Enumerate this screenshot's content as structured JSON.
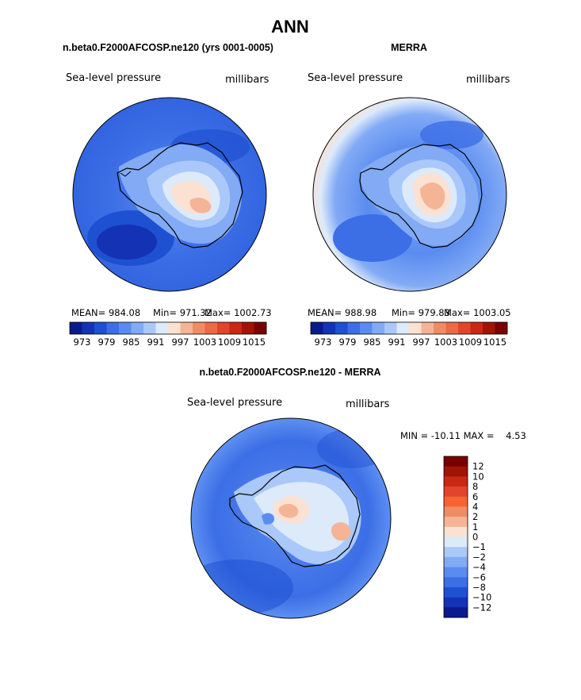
{
  "chart_data": [
    {
      "type": "heatmap",
      "panel": "model",
      "title": "n.beta0.F2000AFCOSP.ne120 (yrs 0001-0005)",
      "variable": "Sea-level pressure",
      "units": "millibars",
      "stats": {
        "mean": "MEAN= 984.08",
        "min": "Min= 971.32",
        "max": "Max= 1002.73"
      },
      "levels": [
        "973",
        "979",
        "985",
        "991",
        "997",
        "1003",
        "1009",
        "1015"
      ],
      "colors": [
        "#0a1a8c",
        "#1432b4",
        "#1e50d2",
        "#3c6ee6",
        "#5a8cf0",
        "#82aaf5",
        "#aac8fa",
        "#dceafa",
        "#fae1d2",
        "#f5b496",
        "#f08c64",
        "#ec6a46",
        "#e0462a",
        "#c82814",
        "#a01406",
        "#780000"
      ]
    },
    {
      "type": "heatmap",
      "panel": "obs",
      "title": "MERRA",
      "variable": "Sea-level pressure",
      "units": "millibars",
      "stats": {
        "mean": "MEAN= 988.98",
        "min": "Min= 979.83",
        "max": "Max= 1003.05"
      },
      "levels": [
        "973",
        "979",
        "985",
        "991",
        "997",
        "1003",
        "1009",
        "1015"
      ],
      "colors": [
        "#0a1a8c",
        "#1432b4",
        "#1e50d2",
        "#3c6ee6",
        "#5a8cf0",
        "#82aaf5",
        "#aac8fa",
        "#dceafa",
        "#fae1d2",
        "#f5b496",
        "#f08c64",
        "#ec6a46",
        "#e0462a",
        "#c82814",
        "#a01406",
        "#780000"
      ]
    },
    {
      "type": "heatmap",
      "panel": "diff",
      "title": "n.beta0.F2000AFCOSP.ne120 - MERRA",
      "variable": "Sea-level pressure",
      "units": "millibars",
      "stats": {
        "minmax": "MIN = -10.11 MAX =    4.53"
      },
      "levels": [
        "12",
        "10",
        "8",
        "6",
        "4",
        "2",
        "1",
        "0",
        "−1",
        "−2",
        "−4",
        "−6",
        "−8",
        "−10",
        "−12"
      ],
      "colors": [
        "#780000",
        "#a01406",
        "#c82814",
        "#e0462a",
        "#f46432",
        "#f08c64",
        "#f5b496",
        "#fae1d2",
        "#dceafa",
        "#aac8fa",
        "#82aaf5",
        "#5a8cf0",
        "#3c6ee6",
        "#1e50d2",
        "#1432b4",
        "#0a1a8c"
      ]
    }
  ],
  "figure": {
    "title": "ANN"
  }
}
